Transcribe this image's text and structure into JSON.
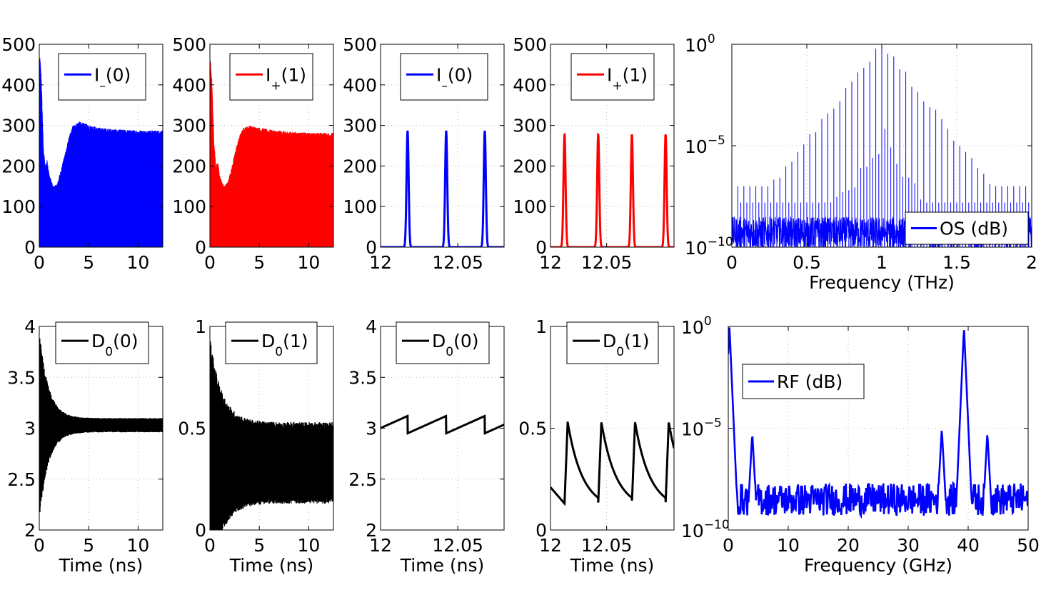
{
  "colors": {
    "blue": "#0000ff",
    "red": "#ff0000",
    "black": "#000000"
  },
  "chart_data": [
    {
      "id": "p1",
      "type": "line",
      "trace": "noisy_intensity",
      "color": "blue",
      "legend": "I_(0)",
      "legend_main": "I",
      "legend_sub": "–",
      "legend_tail": "(0)",
      "xlim": [
        0,
        12.5
      ],
      "ylim": [
        0,
        500
      ],
      "xticks": [
        0,
        5,
        10
      ],
      "yticks": [
        0,
        100,
        200,
        300,
        400,
        500
      ],
      "xlabel": "",
      "ylabel": "",
      "envelope": {
        "x": [
          0,
          0.05,
          0.2,
          0.4,
          0.6,
          0.8,
          1.0,
          1.4,
          1.8,
          2.2,
          2.6,
          3.0,
          3.4,
          4.0,
          5.0,
          6.0,
          8.0,
          10.0,
          12.5
        ],
        "upper": [
          0,
          475,
          420,
          250,
          200,
          215,
          180,
          150,
          155,
          190,
          230,
          270,
          300,
          310,
          302,
          295,
          290,
          288,
          288
        ]
      }
    },
    {
      "id": "p2",
      "type": "line",
      "trace": "noisy_intensity",
      "color": "red",
      "legend": "I+(1)",
      "legend_main": "I",
      "legend_sub": "+",
      "legend_tail": "(1)",
      "xlim": [
        0,
        12.5
      ],
      "ylim": [
        0,
        500
      ],
      "xticks": [
        0,
        5,
        10
      ],
      "yticks": [
        0,
        100,
        200,
        300,
        400,
        500
      ],
      "xlabel": "",
      "ylabel": "",
      "envelope": {
        "x": [
          0,
          0.05,
          0.2,
          0.4,
          0.6,
          0.8,
          1.0,
          1.4,
          1.8,
          2.2,
          2.6,
          3.0,
          3.4,
          4.0,
          5.0,
          6.0,
          8.0,
          10.0,
          12.5
        ],
        "upper": [
          0,
          465,
          410,
          260,
          200,
          210,
          175,
          150,
          160,
          195,
          240,
          275,
          295,
          300,
          295,
          290,
          285,
          282,
          282
        ]
      }
    },
    {
      "id": "p3",
      "type": "line",
      "trace": "pulses",
      "color": "blue",
      "legend": "I_(0)",
      "legend_main": "I",
      "legend_sub": "–",
      "legend_tail": "(0)",
      "xlim": [
        12,
        12.08
      ],
      "ylim": [
        0,
        500
      ],
      "xticks": [
        12,
        12.05
      ],
      "yticks": [
        0,
        100,
        200,
        300,
        400,
        500
      ],
      "xlabel": "",
      "ylabel": "",
      "peaks_x": [
        12.0175,
        12.0425,
        12.0675
      ],
      "peak_height": 287
    },
    {
      "id": "p4",
      "type": "line",
      "trace": "pulses",
      "color": "red",
      "legend": "I+(1)",
      "legend_main": "I",
      "legend_sub": "+",
      "legend_tail": "(1)",
      "xlim": [
        12,
        12.11
      ],
      "ylim": [
        0,
        500
      ],
      "xticks": [
        12,
        12.05
      ],
      "yticks": [
        0,
        100,
        200,
        300,
        400,
        500
      ],
      "xlabel": "",
      "ylabel": "",
      "peaks_x": [
        12.0125,
        12.0425,
        12.0725,
        12.1025
      ],
      "peak_height": 278
    },
    {
      "id": "p5",
      "type": "line",
      "trace": "comb",
      "color": "blue",
      "scale": "log",
      "legend": "OS (dB)",
      "legend_main": "OS (dB)",
      "legend_sub": "",
      "legend_tail": "",
      "xlim": [
        0,
        2
      ],
      "ylim_exp": [
        -10,
        0
      ],
      "xticks": [
        0,
        0.5,
        1,
        1.5,
        2
      ],
      "yticks_exp": [
        -10,
        -5,
        0
      ],
      "y_tick_base": "10",
      "xlabel": "Frequency (THz)",
      "ylabel": "",
      "center": 1.0,
      "spacing": 0.04,
      "width_decades": 0.38,
      "peak_exp": 0,
      "floor_exp": -9
    },
    {
      "id": "p6",
      "type": "line",
      "trace": "carrier",
      "color": "black",
      "legend": "D0(0)",
      "legend_main": "D",
      "legend_sub": "0",
      "legend_tail": "(0)",
      "xlim": [
        0,
        12.5
      ],
      "ylim": [
        2,
        4
      ],
      "xticks": [
        0,
        5,
        10
      ],
      "yticks": [
        2,
        2.5,
        3,
        3.5,
        4
      ],
      "xlabel": "Time (ns)",
      "ylabel": "",
      "center_level": 3.03,
      "start_amp": 0.95,
      "final_amp": 0.07,
      "decay_ns": 0.9
    },
    {
      "id": "p7",
      "type": "line",
      "trace": "carrier",
      "color": "black",
      "legend": "D0(1)",
      "legend_main": "D",
      "legend_sub": "0",
      "legend_tail": "(1)",
      "xlim": [
        0,
        12.5
      ],
      "ylim": [
        0,
        1
      ],
      "xticks": [
        0,
        5,
        10
      ],
      "yticks": [
        0,
        0.5,
        1
      ],
      "xlabel": "Time (ns)",
      "ylabel": "",
      "center_level": 0.33,
      "start_amp": 0.62,
      "final_amp": 0.2,
      "decay_ns": 1.2
    },
    {
      "id": "p8",
      "type": "line",
      "trace": "sawtooth",
      "color": "black",
      "legend": "D0(0)",
      "legend_main": "D",
      "legend_sub": "0",
      "legend_tail": "(0)",
      "xlim": [
        12,
        12.08
      ],
      "ylim": [
        2,
        4
      ],
      "xticks": [
        12,
        12.05
      ],
      "yticks": [
        2,
        2.5,
        3,
        3.5,
        4
      ],
      "xlabel": "Time (ns)",
      "ylabel": "",
      "drops_x": [
        12.0175,
        12.0425,
        12.0675
      ],
      "low": 2.95,
      "high": 3.12
    },
    {
      "id": "p9",
      "type": "line",
      "trace": "gain_recovery",
      "color": "black",
      "legend": "D0(1)",
      "legend_main": "D",
      "legend_sub": "0",
      "legend_tail": "(1)",
      "xlim": [
        12,
        12.11
      ],
      "ylim": [
        0,
        1
      ],
      "xticks": [
        12,
        12.05
      ],
      "yticks": [
        0,
        0.5,
        1
      ],
      "xlabel": "Time (ns)",
      "ylabel": "",
      "rises_x": [
        12.0125,
        12.0425,
        12.0725,
        12.1025
      ],
      "low": 0.13,
      "high": 0.53
    },
    {
      "id": "p10",
      "type": "line",
      "trace": "rf",
      "color": "blue",
      "scale": "log",
      "legend": "RF (dB)",
      "legend_main": "RF (dB)",
      "legend_sub": "",
      "legend_tail": "",
      "xlim": [
        0,
        50
      ],
      "ylim_exp": [
        -10,
        0
      ],
      "xticks": [
        0,
        10,
        20,
        30,
        40,
        50
      ],
      "yticks_exp": [
        -10,
        -5,
        0
      ],
      "y_tick_base": "10",
      "xlabel": "Frequency (GHz)",
      "ylabel": "",
      "peaks": [
        {
          "x": 0.2,
          "exp": 0
        },
        {
          "x": 4,
          "exp": -5.2
        },
        {
          "x": 35.6,
          "exp": -5.0
        },
        {
          "x": 39.3,
          "exp": 0
        },
        {
          "x": 43.2,
          "exp": -5.2
        }
      ],
      "floor_exp": -8.5
    }
  ]
}
